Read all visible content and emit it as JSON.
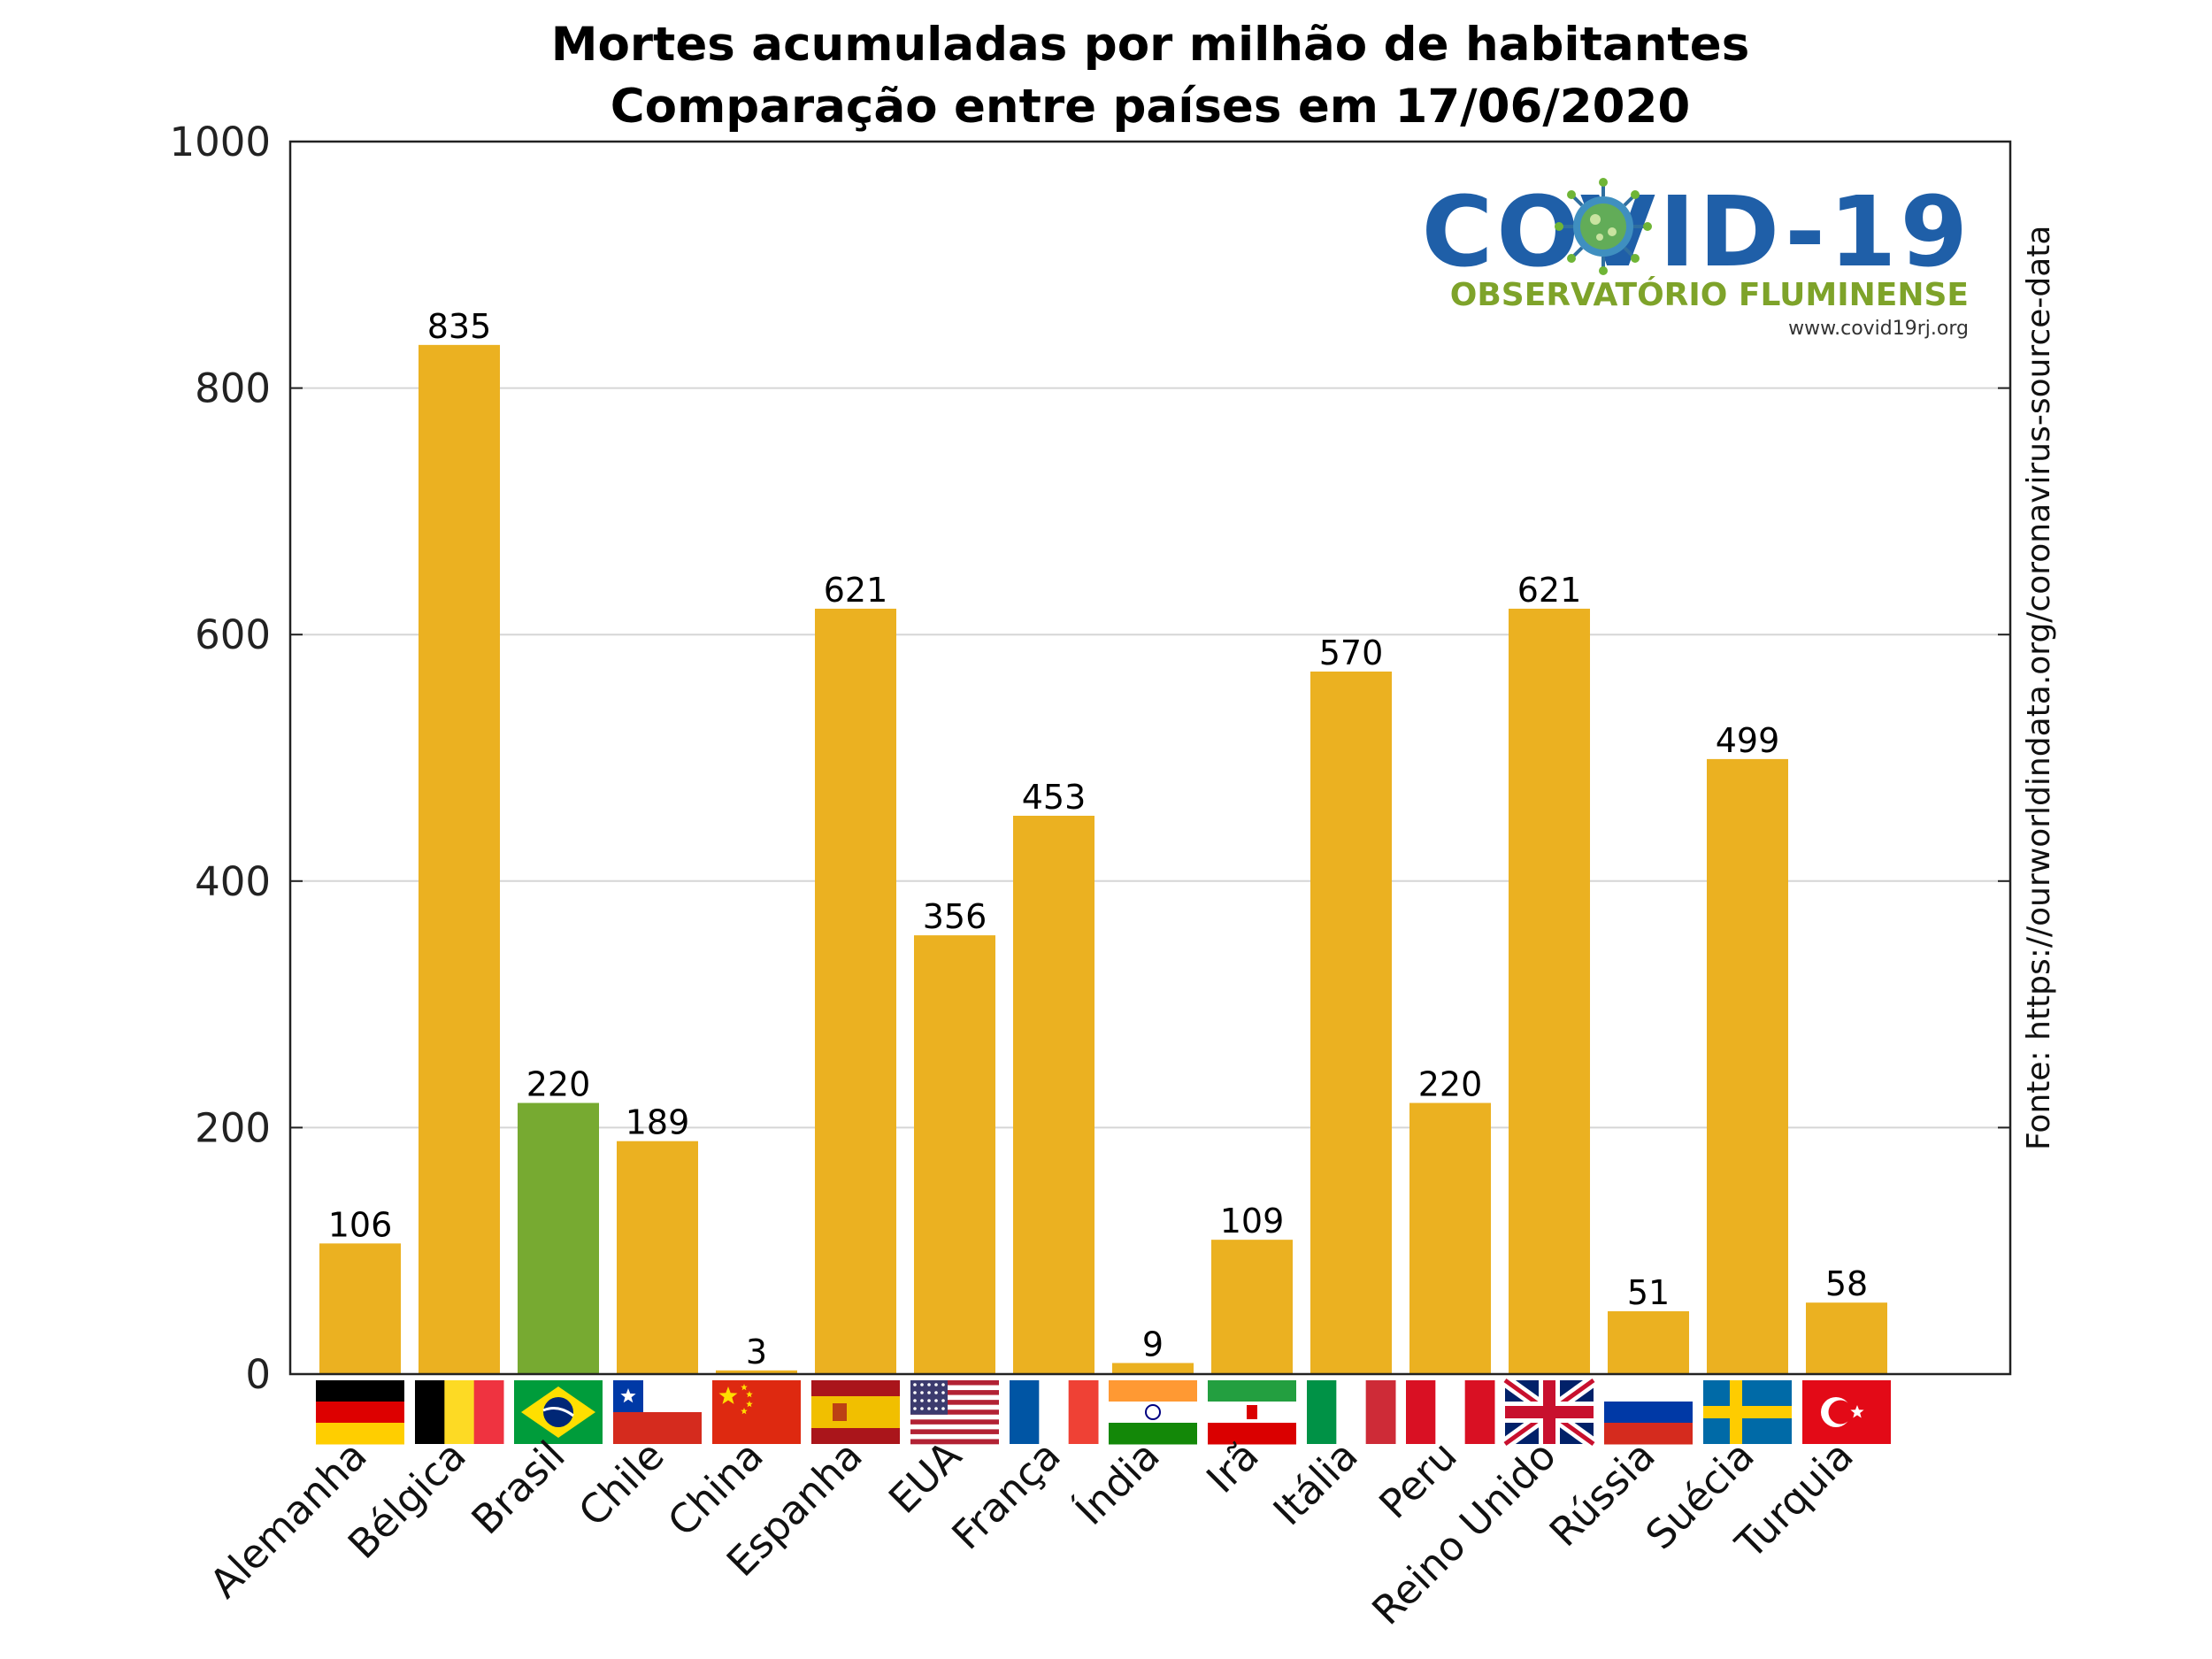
{
  "chart_data": {
    "type": "bar",
    "title": "Mortes acumuladas por milhão de habitantes",
    "subtitle": "Comparação entre países em 17/06/2020",
    "categories": [
      "Alemanha",
      "Bélgica",
      "Brasil",
      "Chile",
      "China",
      "Espanha",
      "EUA",
      "França",
      "Índia",
      "Irã",
      "Itália",
      "Peru",
      "Reino Unido",
      "Rússia",
      "Suécia",
      "Turquia"
    ],
    "values": [
      106,
      835,
      220,
      189,
      3,
      621,
      356,
      453,
      9,
      109,
      570,
      220,
      621,
      51,
      499,
      58
    ],
    "data_labels": [
      "106",
      "835",
      "220",
      "189",
      "3",
      "621",
      "356",
      "453",
      "9",
      "109",
      "570",
      "220",
      "621",
      "51",
      "499",
      "58"
    ],
    "highlight_category": "Brasil",
    "ylim": [
      0,
      1000
    ],
    "yticks": [
      0,
      200,
      400,
      600,
      800,
      1000
    ],
    "ytick_labels": [
      "0",
      "200",
      "400",
      "600",
      "800",
      "1000"
    ],
    "grid": true,
    "xlabel": "",
    "ylabel": "",
    "colors": {
      "bar": "#ebb121",
      "highlight": "#77aa31",
      "grid": "#d6d6d6",
      "axis": "#222222"
    },
    "flags": [
      "germany",
      "belgium",
      "brazil",
      "chile",
      "china",
      "spain",
      "usa",
      "france",
      "india",
      "iran",
      "italy",
      "peru",
      "uk",
      "russia",
      "sweden",
      "turkey"
    ]
  },
  "source_note": "Fonte: https://ourworldindata.org/coronavirus-source-data",
  "logo": {
    "title": "COVID-19",
    "subtitle": "OBSERVATÓRIO FLUMINENSE",
    "url": "www.covid19rj.org",
    "icon": "coronavirus-icon"
  }
}
